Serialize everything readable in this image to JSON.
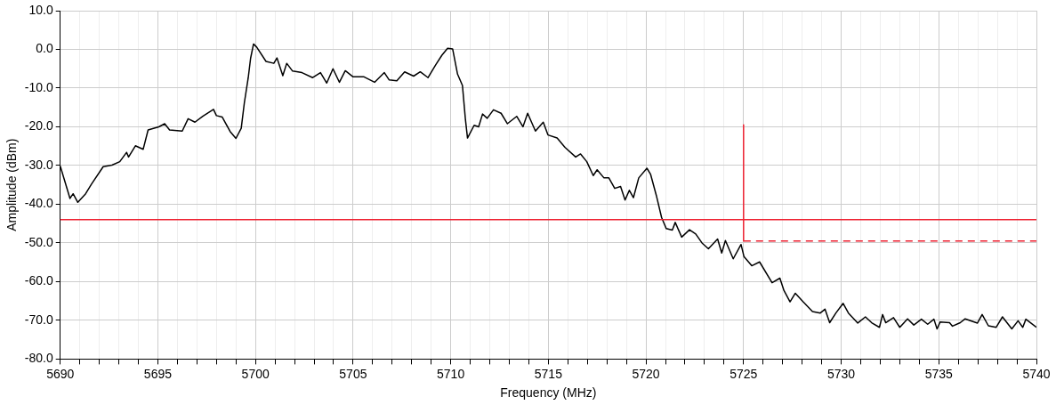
{
  "chart_data": {
    "type": "line",
    "xlabel": "Frequency (MHz)",
    "ylabel": "Amplitude (dBm)",
    "xlim": [
      5690,
      5740
    ],
    "xticks": [
      5690,
      {
        "value": 5691,
        "label": null
      },
      {
        "value": 5692,
        "label": null
      },
      {
        "value": 5693,
        "label": null
      },
      {
        "value": 5694,
        "label": null
      },
      5695,
      {
        "value": 5696,
        "label": null
      },
      {
        "value": 5697,
        "label": null
      },
      {
        "value": 5698,
        "label": null
      },
      {
        "value": 5699,
        "label": null
      },
      5700,
      {
        "value": 5701,
        "label": null
      },
      {
        "value": 5702,
        "label": null
      },
      {
        "value": 5703,
        "label": null
      },
      {
        "value": 5704,
        "label": null
      },
      5705,
      {
        "value": 5706,
        "label": null
      },
      {
        "value": 5707,
        "label": null
      },
      {
        "value": 5708,
        "label": null
      },
      {
        "value": 5709,
        "label": null
      },
      5710,
      {
        "value": 5711,
        "label": null
      },
      {
        "value": 5712,
        "label": null
      },
      {
        "value": 5713,
        "label": null
      },
      {
        "value": 5714,
        "label": null
      },
      5715,
      {
        "value": 5716,
        "label": null
      },
      {
        "value": 5717,
        "label": null
      },
      {
        "value": 5718,
        "label": null
      },
      {
        "value": 5719,
        "label": null
      },
      5720,
      {
        "value": 5721,
        "label": null
      },
      {
        "value": 5722,
        "label": null
      },
      {
        "value": 5723,
        "label": null
      },
      {
        "value": 5724,
        "label": null
      },
      5725,
      {
        "value": 5726,
        "label": null
      },
      {
        "value": 5727,
        "label": null
      },
      {
        "value": 5728,
        "label": null
      },
      {
        "value": 5729,
        "label": null
      },
      5730,
      {
        "value": 5731,
        "label": null
      },
      {
        "value": 5732,
        "label": null
      },
      {
        "value": 5733,
        "label": null
      },
      {
        "value": 5734,
        "label": null
      },
      5735,
      {
        "value": 5736,
        "label": null
      },
      {
        "value": 5737,
        "label": null
      },
      {
        "value": 5738,
        "label": null
      },
      {
        "value": 5739,
        "label": null
      },
      5740
    ],
    "ylim": [
      -80,
      10
    ],
    "yticks": [
      {
        "value": -80,
        "label": "-80.0"
      },
      {
        "value": -70,
        "label": "-70.0"
      },
      {
        "value": -60,
        "label": "-60.0"
      },
      {
        "value": -50,
        "label": "-50.0"
      },
      {
        "value": -40,
        "label": "-40.0"
      },
      {
        "value": -30,
        "label": "-30.0"
      },
      {
        "value": -20,
        "label": "-20.0"
      },
      {
        "value": -10,
        "label": "-10.0"
      },
      {
        "value": 0,
        "label": "0.0"
      },
      {
        "value": 10,
        "label": "10.0"
      }
    ],
    "grid": true,
    "legend": false,
    "marker": "none",
    "ref_lines": [
      {
        "axis": "y",
        "value": -44,
        "color": "#ee2030"
      }
    ],
    "series": [
      {
        "color": "#000000",
        "line_style": "solid",
        "x": [
          5690,
          5690.5,
          5690.66,
          5690.9,
          5691.3,
          5691.6,
          5692.2,
          5692.65,
          5693.05,
          5693.4,
          5693.5,
          5693.85,
          5694.25,
          5694.5,
          5695.05,
          5695.35,
          5695.6,
          5696.25,
          5696.55,
          5696.9,
          5697.3,
          5697.85,
          5698,
          5698.3,
          5698.7,
          5699,
          5699.27,
          5699.43,
          5699.63,
          5699.75,
          5699.9,
          5700.06,
          5700.54,
          5700.94,
          5701.1,
          5701.4,
          5701.6,
          5701.9,
          5702.38,
          5702.93,
          5703.33,
          5703.65,
          5703.97,
          5704.3,
          5704.6,
          5705,
          5705.56,
          5706.1,
          5706.6,
          5706.85,
          5707.24,
          5707.64,
          5708.1,
          5708.44,
          5708.84,
          5709.23,
          5709.55,
          5709.84,
          5710.1,
          5710.35,
          5710.6,
          5710.75,
          5710.86,
          5711.2,
          5711.43,
          5711.63,
          5711.87,
          5712.19,
          5712.58,
          5712.9,
          5713.38,
          5713.7,
          5713.94,
          5714.34,
          5714.74,
          5714.98,
          5715.45,
          5715.85,
          5716.4,
          5716.65,
          5716.97,
          5717.3,
          5717.5,
          5717.85,
          5718.1,
          5718.4,
          5718.7,
          5718.93,
          5719.15,
          5719.36,
          5719.63,
          5720.05,
          5720.24,
          5720.53,
          5720.8,
          5721.04,
          5721.35,
          5721.5,
          5721.83,
          5722.23,
          5722.55,
          5722.87,
          5723.2,
          5723.67,
          5723.88,
          5724.07,
          5724.47,
          5724.87,
          5725.02,
          5725.42,
          5725.82,
          5726.46,
          5726.86,
          5727.07,
          5727.38,
          5727.65,
          5728.05,
          5728.53,
          5728.93,
          5729.17,
          5729.41,
          5729.73,
          5730.1,
          5730.37,
          5730.85,
          5731.24,
          5731.56,
          5731.96,
          5732.12,
          5732.28,
          5732.68,
          5733,
          5733.4,
          5733.72,
          5734.11,
          5734.43,
          5734.75,
          5734.91,
          5735.07,
          5735.55,
          5735.7,
          5736.1,
          5736.35,
          5736.98,
          5737.22,
          5737.54,
          5737.94,
          5738.26,
          5738.74,
          5739.06,
          5739.3,
          5739.46,
          5740
        ],
        "values": [
          -30.1,
          -38.5,
          -37.3,
          -39.5,
          -37.3,
          -34.8,
          -30.3,
          -29.9,
          -29,
          -26.6,
          -27.8,
          -24.9,
          -25.8,
          -20.8,
          -20,
          -19.2,
          -20.8,
          -21.1,
          -17.9,
          -18.8,
          -17.3,
          -15.5,
          -17.1,
          -17.5,
          -21.2,
          -23,
          -20.4,
          -13.8,
          -7.3,
          -2.3,
          1.4,
          0.6,
          -3.1,
          -3.6,
          -2.2,
          -6.8,
          -3.6,
          -5.6,
          -6,
          -7.3,
          -6,
          -8.7,
          -5,
          -8.5,
          -5.5,
          -7.1,
          -7.1,
          -8.5,
          -6,
          -7.9,
          -8.1,
          -5.8,
          -6.9,
          -5.8,
          -7.3,
          -4,
          -1.5,
          0.3,
          0.1,
          -6.4,
          -9.3,
          -17.9,
          -22.9,
          -19.6,
          -20,
          -16.7,
          -17.8,
          -15.6,
          -16.5,
          -19.2,
          -17.3,
          -20,
          -16.5,
          -21.1,
          -18.8,
          -22.1,
          -22.9,
          -25.3,
          -27.8,
          -27,
          -29,
          -32.6,
          -31.1,
          -33.2,
          -33.2,
          -35.9,
          -35.4,
          -38.9,
          -36.4,
          -38.3,
          -33.2,
          -30.7,
          -32.3,
          -37.7,
          -43.4,
          -46.3,
          -46.7,
          -44.7,
          -48.5,
          -46.6,
          -47.7,
          -50,
          -51.5,
          -49,
          -52.6,
          -49.4,
          -54.1,
          -50.4,
          -53.5,
          -55.9,
          -54.9,
          -60.3,
          -59.1,
          -62.3,
          -65.2,
          -63,
          -65.2,
          -67.7,
          -68.1,
          -67.1,
          -70.6,
          -68.1,
          -65.6,
          -68.1,
          -70.7,
          -69.1,
          -70.6,
          -71.8,
          -68.5,
          -70.6,
          -69.3,
          -71.8,
          -69.6,
          -71.2,
          -69.7,
          -71,
          -69.7,
          -72.2,
          -70.4,
          -70.6,
          -71.5,
          -70.6,
          -69.6,
          -70.7,
          -68.5,
          -71.4,
          -71.8,
          -69.1,
          -72.2,
          -70.1,
          -71.8,
          -69.7,
          -71.8
        ]
      },
      {
        "color": "#ee2030",
        "line_style": "solid",
        "x": [
          5725,
          5725
        ],
        "values": [
          -19.5,
          -49.5
        ]
      },
      {
        "color": "#ee2030",
        "line_style": "dashed",
        "x": [
          5725,
          5740
        ],
        "values": [
          -49.5,
          -49.5
        ]
      }
    ]
  }
}
